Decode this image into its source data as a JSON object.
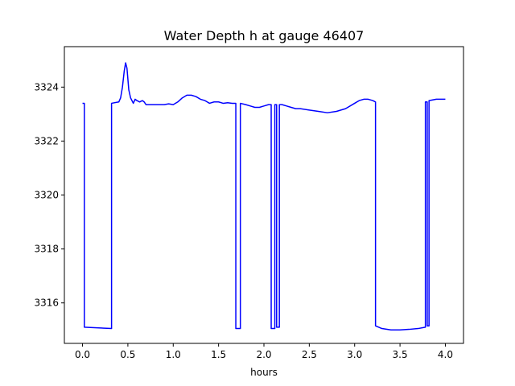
{
  "chart_data": {
    "type": "line",
    "title": "Water Depth h at gauge 46407",
    "xlabel": "hours",
    "ylabel": "",
    "xlim": [
      -0.2,
      4.2
    ],
    "ylim": [
      3314.5,
      3325.5
    ],
    "xticks": [
      0.0,
      0.5,
      1.0,
      1.5,
      2.0,
      2.5,
      3.0,
      3.5,
      4.0
    ],
    "xtick_labels": [
      "0.0",
      "0.5",
      "1.0",
      "1.5",
      "2.0",
      "2.5",
      "3.0",
      "3.5",
      "4.0"
    ],
    "yticks": [
      3316,
      3318,
      3320,
      3322,
      3324
    ],
    "ytick_labels": [
      "3316",
      "3318",
      "3320",
      "3322",
      "3324"
    ],
    "grid": false,
    "line_color": "#0000ff",
    "series": [
      {
        "name": "",
        "x": [
          0.0,
          0.02,
          0.02,
          0.32,
          0.32,
          0.4,
          0.42,
          0.44,
          0.46,
          0.475,
          0.49,
          0.51,
          0.53,
          0.56,
          0.58,
          0.6,
          0.63,
          0.66,
          0.68,
          0.7,
          0.75,
          0.8,
          0.85,
          0.9,
          0.95,
          1.0,
          1.05,
          1.1,
          1.15,
          1.2,
          1.25,
          1.3,
          1.35,
          1.4,
          1.45,
          1.5,
          1.55,
          1.6,
          1.65,
          1.69,
          1.69,
          1.74,
          1.74,
          1.8,
          1.85,
          1.9,
          1.95,
          2.0,
          2.05,
          2.08,
          2.08,
          2.12,
          2.12,
          2.14,
          2.14,
          2.17,
          2.17,
          2.2,
          2.25,
          2.3,
          2.35,
          2.4,
          2.5,
          2.6,
          2.7,
          2.8,
          2.9,
          3.0,
          3.05,
          3.1,
          3.15,
          3.2,
          3.23,
          3.23,
          3.3,
          3.4,
          3.5,
          3.6,
          3.7,
          3.78,
          3.78,
          3.8,
          3.8,
          3.82,
          3.82,
          3.9,
          4.0
        ],
        "y": [
          3323.4,
          3323.4,
          3315.1,
          3315.05,
          3323.4,
          3323.45,
          3323.6,
          3324.0,
          3324.6,
          3324.9,
          3324.7,
          3323.9,
          3323.6,
          3323.4,
          3323.55,
          3323.5,
          3323.45,
          3323.5,
          3323.45,
          3323.35,
          3323.35,
          3323.35,
          3323.35,
          3323.35,
          3323.38,
          3323.35,
          3323.45,
          3323.6,
          3323.7,
          3323.7,
          3323.65,
          3323.55,
          3323.5,
          3323.4,
          3323.45,
          3323.45,
          3323.4,
          3323.42,
          3323.4,
          3323.4,
          3315.05,
          3315.05,
          3323.4,
          3323.35,
          3323.3,
          3323.25,
          3323.25,
          3323.3,
          3323.35,
          3323.35,
          3315.05,
          3315.05,
          3323.35,
          3323.35,
          3315.1,
          3315.1,
          3323.35,
          3323.35,
          3323.3,
          3323.25,
          3323.2,
          3323.2,
          3323.15,
          3323.1,
          3323.05,
          3323.1,
          3323.2,
          3323.4,
          3323.5,
          3323.55,
          3323.55,
          3323.5,
          3323.45,
          3315.15,
          3315.05,
          3315.0,
          3315.0,
          3315.02,
          3315.05,
          3315.1,
          3323.45,
          3323.45,
          3315.15,
          3315.15,
          3323.5,
          3323.55,
          3323.55
        ]
      }
    ]
  }
}
